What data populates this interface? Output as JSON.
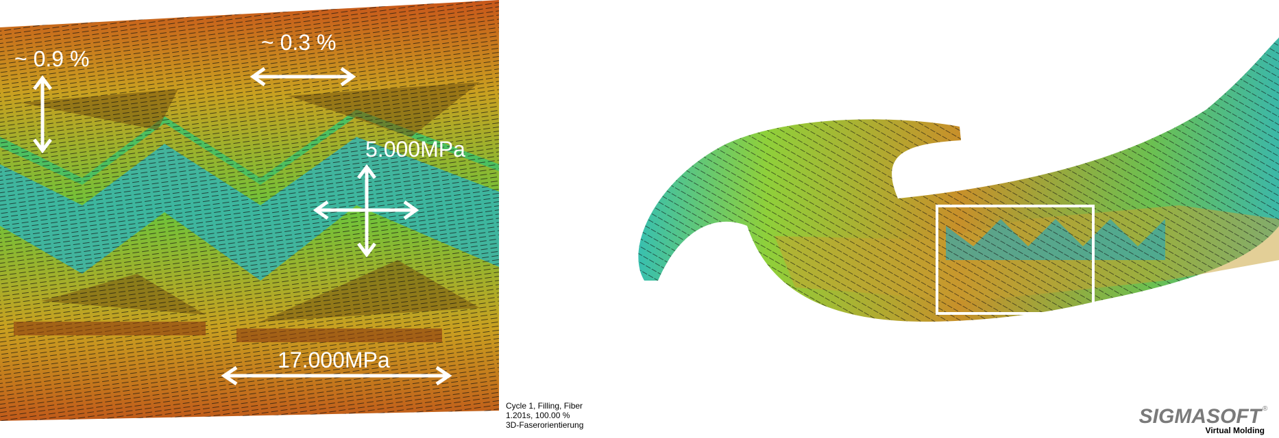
{
  "annotations": {
    "left_strain": "~ 0.9 %",
    "top_strain": "~ 0.3 %",
    "center_stress": "5.000MPa",
    "bottom_stress": "17.000MPa"
  },
  "caption": {
    "line1": "Cycle 1, Filling, Fiber",
    "line2": "1.201s, 100.00 %",
    "line3": "3D-Faserorientierung"
  },
  "logo": {
    "name": "SIGMASOFT",
    "mark": "®",
    "tagline": "Virtual Molding"
  }
}
